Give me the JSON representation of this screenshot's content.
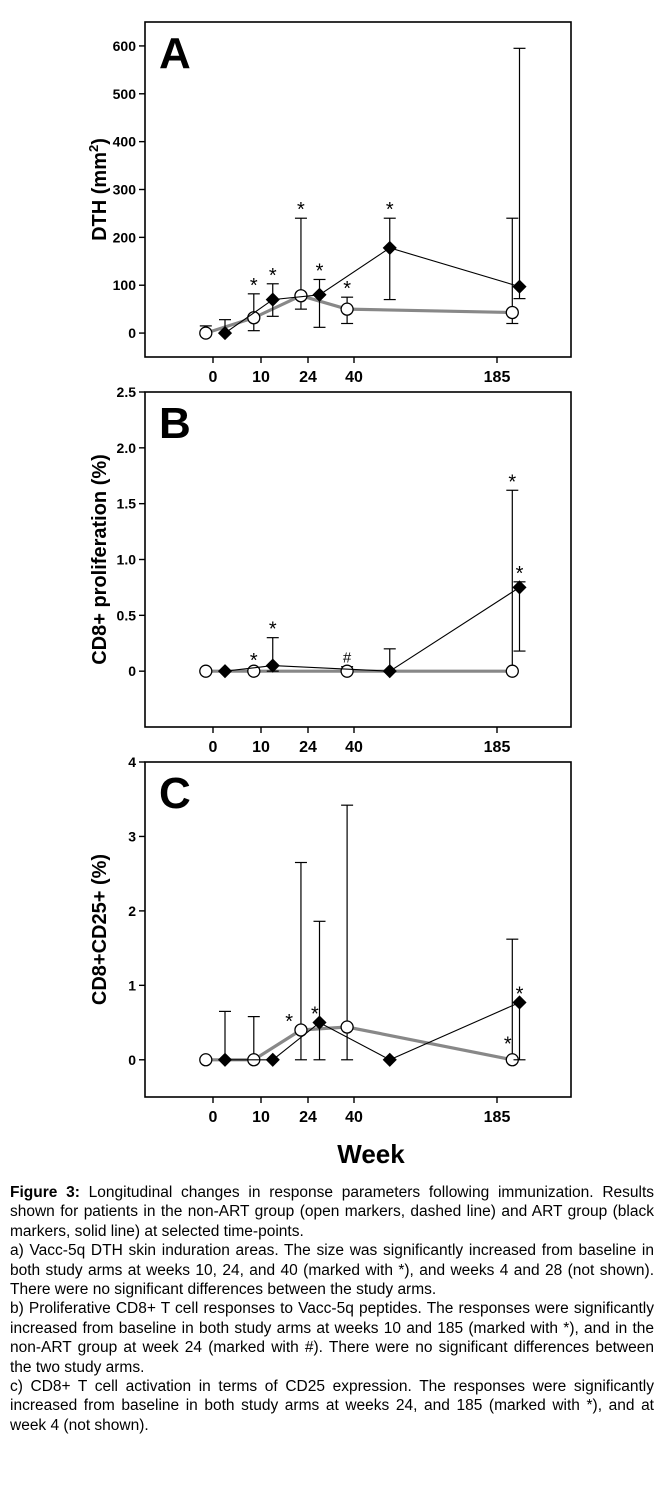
{
  "chart_data": [
    {
      "type": "line",
      "panel_label": "A",
      "ylabel_main": "DTH (mm",
      "ylabel_sup": "2",
      "ylabel_close": ")",
      "ylim": [
        -50,
        650
      ],
      "yticks": [
        0,
        100,
        200,
        300,
        400,
        500,
        600
      ],
      "xticks": [
        "0",
        "10",
        "24",
        "40",
        "185"
      ],
      "x": [
        0,
        1,
        2,
        3,
        4
      ],
      "series": [
        {
          "group": "non-ART",
          "marker": "circle-open",
          "color": "#888888",
          "points": [
            {
              "x": -0.15,
              "y": 0,
              "up": 15,
              "low": 0
            },
            {
              "x": 0.85,
              "y": 32,
              "up": 82,
              "low": 5
            },
            {
              "x": 1.85,
              "y": 78,
              "up": 240,
              "low": 50
            },
            {
              "x": 2.85,
              "y": 50,
              "up": 75,
              "low": 20
            },
            {
              "x": 4.85,
              "y": 43,
              "up": 240,
              "low": 20
            }
          ]
        },
        {
          "group": "ART",
          "marker": "diamond-filled",
          "color": "#000000",
          "points": [
            {
              "x": 0.25,
              "y": 0,
              "up": 28,
              "low": 0
            },
            {
              "x": 1.25,
              "y": 70,
              "up": 103,
              "low": 35
            },
            {
              "x": 2.25,
              "y": 80,
              "up": 112,
              "low": 12
            },
            {
              "x": 3.25,
              "y": 178,
              "up": 240,
              "low": 70
            },
            {
              "x": 5.25,
              "y": 97,
              "up": 595,
              "low": 72
            }
          ]
        }
      ],
      "annotations": [
        {
          "text": "*",
          "x": 0.85,
          "y": 82
        },
        {
          "text": "*",
          "x": 1.25,
          "y": 103
        },
        {
          "text": "*",
          "x": 1.85,
          "y": 240
        },
        {
          "text": "*",
          "x": 2.25,
          "y": 112
        },
        {
          "text": "*",
          "x": 2.85,
          "y": 75
        },
        {
          "text": "*",
          "x": 3.25,
          "y": 240
        }
      ]
    },
    {
      "type": "line",
      "panel_label": "B",
      "ylabel": "CD8+ proliferation (%)",
      "ylim": [
        -0.5,
        2.5
      ],
      "yticks": [
        0,
        0.5,
        1.0,
        1.5,
        2.0,
        2.5
      ],
      "ytick_labels": [
        "0",
        "0.5",
        "1.0",
        "1.5",
        "2.0",
        "2.5"
      ],
      "xticks": [
        "0",
        "10",
        "24",
        "40",
        "185"
      ],
      "series": [
        {
          "group": "non-ART",
          "marker": "circle-open",
          "color": "#888888",
          "points": [
            {
              "x": -0.15,
              "y": 0
            },
            {
              "x": 0.85,
              "y": 0,
              "up": 0.02
            },
            {
              "x": 2.85,
              "y": 0,
              "up": 0.04
            },
            {
              "x": 4.85,
              "y": 0,
              "up": 1.62
            }
          ]
        },
        {
          "group": "ART",
          "marker": "diamond-filled",
          "color": "#000000",
          "points": [
            {
              "x": 0.25,
              "y": 0
            },
            {
              "x": 1.25,
              "y": 0.05,
              "up": 0.3,
              "low": 0
            },
            {
              "x": 3.25,
              "y": 0,
              "up": 0.2
            },
            {
              "x": 5.25,
              "y": 0.75,
              "up": 0.8,
              "low": 0.18
            }
          ]
        }
      ],
      "annotations": [
        {
          "text": "*",
          "x": 0.85,
          "y": 0.02
        },
        {
          "text": "*",
          "x": 1.25,
          "y": 0.3
        },
        {
          "text": "#",
          "x": 2.85,
          "y": 0.04
        },
        {
          "text": "*",
          "x": 4.85,
          "y": 1.62
        },
        {
          "text": "*",
          "x": 5.25,
          "y": 0.8
        }
      ]
    },
    {
      "type": "line",
      "panel_label": "C",
      "ylabel": "CD8+CD25+ (%)",
      "ylim": [
        -0.5,
        4
      ],
      "yticks": [
        0,
        1,
        2,
        3,
        4
      ],
      "ytick_labels": [
        "0",
        "1",
        "2",
        "3",
        "4"
      ],
      "xticks": [
        "0",
        "10",
        "24",
        "40",
        "185"
      ],
      "xlabel": "Week",
      "series": [
        {
          "group": "non-ART",
          "marker": "circle-open",
          "color": "#888888",
          "points": [
            {
              "x": -0.15,
              "y": 0
            },
            {
              "x": 0.85,
              "y": 0,
              "up": 0.58
            },
            {
              "x": 1.85,
              "y": 0.4,
              "up": 2.65,
              "low": 0
            },
            {
              "x": 2.85,
              "y": 0.44,
              "up": 3.42,
              "low": 0
            },
            {
              "x": 4.85,
              "y": 0,
              "up": 1.62
            }
          ]
        },
        {
          "group": "ART",
          "marker": "diamond-filled",
          "color": "#000000",
          "points": [
            {
              "x": 0.25,
              "y": 0,
              "up": 0.65
            },
            {
              "x": 1.25,
              "y": 0
            },
            {
              "x": 2.25,
              "y": 0.5,
              "up": 1.86,
              "low": 0
            },
            {
              "x": 3.25,
              "y": 0
            },
            {
              "x": 5.25,
              "y": 0.77,
              "up": 0.77,
              "low": 0
            }
          ]
        }
      ],
      "annotations": [
        {
          "text": "*",
          "x": 1.6,
          "y": 0.4
        },
        {
          "text": "*",
          "x": 2.15,
          "y": 0.5
        },
        {
          "text": "*",
          "x": 4.6,
          "y": 0.1
        },
        {
          "text": "*",
          "x": 5.25,
          "y": 0.77
        }
      ]
    }
  ],
  "caption": {
    "title": "Figure 3:",
    "intro": "Longitudinal changes in response parameters following immunization. Results shown for patients in the non-ART group (open markers, dashed line) and ART group (black markers, solid line) at selected time-points.",
    "a": "a) Vacc-5q DTH skin induration areas. The size was significantly increased from baseline in both study arms at weeks 10, 24, and 40 (marked with *), and weeks 4 and 28 (not shown). There were no significant differences between the study arms.",
    "b": "b) Proliferative CD8+ T cell responses to Vacc-5q peptides. The responses were significantly increased from baseline in both study arms at weeks 10 and 185 (marked with *), and in the non-ART group at week 24 (marked with #). There were no significant differences between the two study arms.",
    "c": "c) CD8+ T cell activation in terms of CD25 expression. The responses were significantly increased from baseline in both study arms at weeks 24, and 185 (marked with *), and at week 4 (not shown)."
  }
}
